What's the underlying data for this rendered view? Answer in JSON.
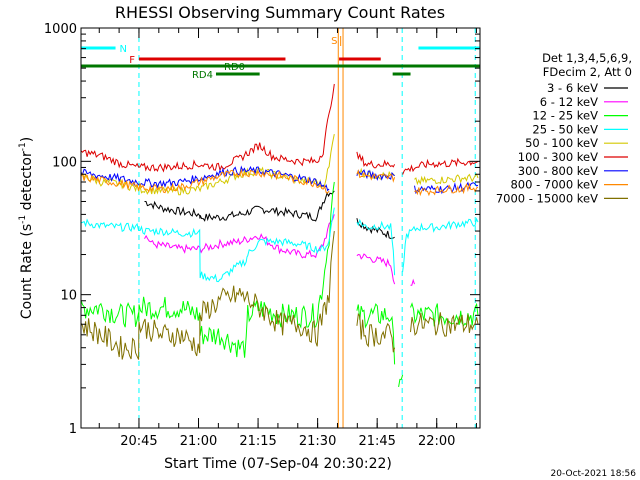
{
  "chart_data": {
    "type": "line",
    "title": "RHESSI Observing Summary Count Rates",
    "xlabel": "Start Time (07-Sep-04 20:30:22)",
    "ylabel_main": "Count Rate (s",
    "ylabel_sup1": "-1",
    "ylabel_mid": " detector",
    "ylabel_sup2": "-1",
    "ylabel_end": ")",
    "y_scale": "log",
    "ylim": [
      1,
      1000
    ],
    "xlim_min": [
      0,
      100.5
    ],
    "x_ticks": [
      {
        "m": 14.6,
        "label": "20:45"
      },
      {
        "m": 29.6,
        "label": "21:00"
      },
      {
        "m": 44.6,
        "label": "21:15"
      },
      {
        "m": 59.6,
        "label": "21:30"
      },
      {
        "m": 74.6,
        "label": "21:45"
      },
      {
        "m": 89.6,
        "label": "22:00"
      }
    ],
    "y_ticks": [
      {
        "v": 1,
        "label": "1"
      },
      {
        "v": 10,
        "label": "10"
      },
      {
        "v": 100,
        "label": "100"
      },
      {
        "v": 1000,
        "label": "1000"
      }
    ],
    "legend_header": [
      "Det 1,3,4,5,6,9,",
      "FDecim 2, Att 0"
    ],
    "series": [
      {
        "name": "3 - 6 keV",
        "color": "#000000",
        "x": [
          16,
          20,
          25,
          29.9,
          30,
          35,
          40,
          45,
          50,
          55,
          59.5,
          60.5,
          62,
          63.8
        ],
        "y": [
          50,
          45,
          42,
          40,
          38,
          38,
          40,
          44,
          42,
          40,
          38,
          46,
          58,
          60
        ],
        "x2": [
          69.5,
          72,
          75,
          78,
          79
        ],
        "y2": [
          36,
          32,
          30,
          28,
          27
        ]
      },
      {
        "name": "6 - 12 keV",
        "color": "#ff00ff",
        "x": [
          16,
          18,
          25,
          29.9,
          33,
          35,
          40,
          45,
          47,
          50,
          55,
          59.5,
          61,
          62.5,
          63.8
        ],
        "y": [
          28,
          24,
          22,
          22,
          23,
          24,
          25,
          28,
          25,
          22,
          20,
          20,
          24,
          32,
          40
        ],
        "x2": [
          69.5,
          72,
          75,
          78,
          79
        ],
        "y2": [
          20,
          19,
          18,
          17,
          12
        ],
        "x3": [
          83,
          84
        ],
        "y3": [
          12,
          12
        ]
      },
      {
        "name": "12 - 25 keV",
        "color": "#00ff00",
        "x": [
          0,
          5,
          10,
          14.5,
          14.6,
          20,
          25,
          29.9,
          30,
          35,
          40,
          41.6,
          42,
          45,
          50,
          55,
          59.5,
          61,
          62.5,
          63.8
        ],
        "y": [
          8,
          8,
          7,
          7,
          8,
          8,
          8,
          7,
          5,
          5,
          4,
          4,
          7,
          8,
          7,
          7,
          7,
          12,
          25,
          70
        ],
        "x2": [
          69.5,
          72,
          75,
          78,
          79
        ],
        "y2": [
          7,
          7,
          7,
          7,
          3
        ],
        "x3": [
          80,
          81
        ],
        "y3": [
          2.5,
          2.5
        ],
        "x4": [
          83,
          86,
          92,
          96,
          100
        ],
        "y4": [
          7,
          7,
          7,
          7,
          7
        ]
      },
      {
        "name": "25 - 50 keV",
        "color": "#00ffff",
        "x": [
          0,
          5,
          10,
          14.5,
          16,
          20,
          25,
          29.9,
          30,
          35,
          41.6,
          42,
          45,
          50,
          55,
          59.5,
          61,
          62.5,
          63.8
        ],
        "y": [
          35,
          33,
          32,
          32,
          30,
          30,
          29,
          29,
          14,
          13,
          18,
          20,
          25,
          25,
          24,
          22,
          22,
          25,
          45
        ],
        "x2": [
          69.5,
          72,
          75,
          78,
          79
        ],
        "y2": [
          36,
          32,
          33,
          32,
          14
        ],
        "x3": [
          81,
          82,
          85,
          90,
          95,
          100
        ],
        "y3": [
          14,
          28,
          32,
          32,
          34,
          35
        ]
      },
      {
        "name": "50 - 100 keV",
        "color": "#d4c800",
        "x": [
          0,
          5,
          10,
          14.5,
          20,
          25,
          30,
          35,
          40,
          45,
          48,
          50,
          55,
          59.5,
          61,
          62.5,
          63.8
        ],
        "y": [
          78,
          70,
          68,
          62,
          60,
          60,
          62,
          70,
          80,
          85,
          80,
          78,
          72,
          70,
          65,
          90,
          160
        ],
        "x2": [
          69.5,
          72,
          75,
          78,
          79
        ],
        "y2": [
          85,
          80,
          78,
          78,
          78
        ],
        "x3": [
          84,
          88,
          92,
          96,
          100
        ],
        "y3": [
          70,
          72,
          73,
          75,
          75
        ]
      },
      {
        "name": "100 - 300 keV",
        "color": "#dd0000",
        "x": [
          0,
          5,
          10,
          14.5,
          20,
          25,
          30,
          35,
          40,
          45,
          48,
          50,
          55,
          59.5,
          61,
          62.5,
          63.8
        ],
        "y": [
          118,
          110,
          96,
          90,
          90,
          92,
          95,
          90,
          105,
          132,
          110,
          105,
          100,
          100,
          120,
          220,
          380
        ],
        "x2": [
          69.5,
          72,
          75,
          78,
          79
        ],
        "y2": [
          110,
          95,
          95,
          95,
          95
        ],
        "x3": [
          81,
          84,
          88,
          92,
          96,
          100
        ],
        "y3": [
          84,
          90,
          96,
          96,
          98,
          100
        ]
      },
      {
        "name": "300 - 800 keV",
        "color": "#0000ff",
        "x": [
          0,
          5,
          10,
          14.5,
          20,
          25,
          30,
          35,
          40,
          45,
          50,
          55,
          59.5,
          61,
          62.5
        ],
        "y": [
          82,
          78,
          74,
          70,
          68,
          70,
          75,
          82,
          85,
          85,
          80,
          75,
          70,
          65,
          62
        ],
        "x2": [
          69.5,
          72,
          75,
          78,
          79
        ],
        "y2": [
          82,
          80,
          78,
          78,
          78
        ],
        "x3": [
          84,
          88,
          92,
          96,
          100
        ],
        "y3": [
          62,
          62,
          62,
          64,
          66
        ]
      },
      {
        "name": "800 - 7000 keV",
        "color": "#ff8800",
        "x": [
          0,
          5,
          10,
          14.5,
          20,
          25,
          30,
          35,
          40,
          45,
          50,
          55,
          59.5,
          61,
          62.5
        ],
        "y": [
          76,
          72,
          68,
          64,
          62,
          64,
          70,
          78,
          82,
          82,
          78,
          72,
          68,
          64,
          60
        ],
        "x2": [
          69.5,
          72,
          75,
          78,
          79
        ],
        "y2": [
          80,
          78,
          76,
          76,
          76
        ],
        "x3": [
          84,
          88,
          92,
          96,
          100
        ],
        "y3": [
          60,
          60,
          62,
          62,
          64
        ]
      },
      {
        "name": "7000 - 15000 keV",
        "color": "#807000",
        "x": [
          0,
          5,
          10,
          14.5,
          14.6,
          20,
          25,
          29.9,
          30,
          35,
          40,
          45,
          50,
          55,
          59.5,
          61,
          62.5,
          63.8
        ],
        "y": [
          6,
          5,
          4,
          4,
          6,
          5,
          5,
          4,
          7,
          9,
          10,
          8,
          6,
          6,
          5,
          7,
          10,
          30
        ],
        "x2": [
          69.5,
          72,
          75,
          78,
          79
        ],
        "y2": [
          6,
          5,
          5,
          5,
          4
        ],
        "x3": [
          83,
          86,
          92,
          96,
          100
        ],
        "y3": [
          6,
          6,
          6,
          6,
          6
        ]
      }
    ],
    "flags": [
      {
        "label": "N",
        "color": "#00ffff",
        "segments": [
          [
            0,
            8.7
          ],
          [
            85,
            100.5
          ]
        ]
      },
      {
        "label": "F",
        "color": "#dd0000",
        "segments": [
          [
            14.6,
            51.5
          ],
          [
            65,
            75.5
          ]
        ]
      },
      {
        "label": "RD0",
        "color": "#007700",
        "segments": [
          [
            0,
            100.5
          ]
        ]
      },
      {
        "label": "RD4",
        "color": "#007700",
        "segments": [
          [
            34,
            45
          ],
          [
            78.5,
            83
          ]
        ]
      }
    ],
    "flag_S_label": "S",
    "vlines": [
      {
        "m": 14.6,
        "color": "#00ffff",
        "style": "dash"
      },
      {
        "m": 64.8,
        "color": "#ff8800",
        "style": "solid"
      },
      {
        "m": 66.0,
        "color": "#ff8800",
        "style": "solid"
      },
      {
        "m": 80.9,
        "color": "#00ffff",
        "style": "dash"
      },
      {
        "m": 99.3,
        "color": "#00ffff",
        "style": "dash"
      }
    ],
    "timestamp": "20-Oct-2021 18:56"
  }
}
